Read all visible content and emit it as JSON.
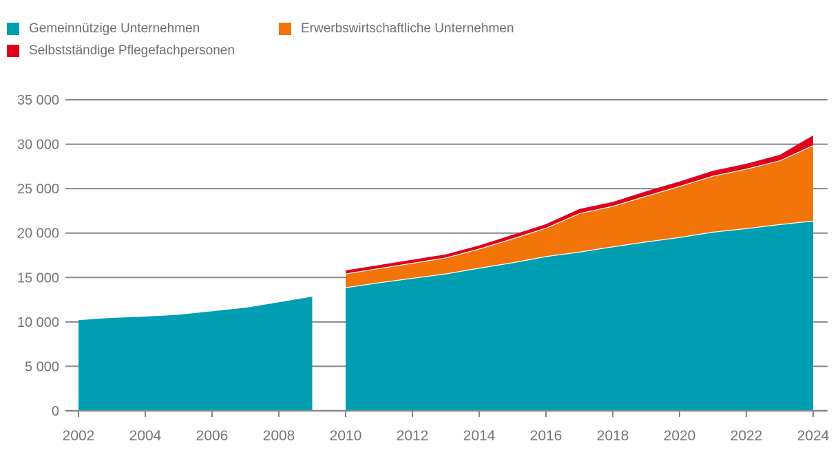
{
  "legend": {
    "items": [
      {
        "id": "gemeinnuetzige",
        "label": "Gemeinnützige Unternehmen",
        "color": "#009EB3"
      },
      {
        "id": "erwerbswirtschaftliche",
        "label": "Erwerbswirtschaftliche Unternehmen",
        "color": "#F37409"
      },
      {
        "id": "selbststaendige",
        "label": "Selbstständige Pflegefachpersonen",
        "color": "#E0001E"
      }
    ]
  },
  "chart_data": {
    "type": "area",
    "stacked": true,
    "grid": "horizontal",
    "legend_position": "top-left",
    "title": "",
    "xlabel": "",
    "ylabel": "",
    "ylim": [
      0,
      35000
    ],
    "y_ticks": [
      0,
      5000,
      10000,
      15000,
      20000,
      25000,
      30000,
      35000
    ],
    "y_tick_labels": [
      "0",
      "5 000",
      "10 000",
      "15 000",
      "20 000",
      "25 000",
      "30 000",
      "35 000"
    ],
    "x": [
      2002,
      2003,
      2004,
      2005,
      2006,
      2007,
      2008,
      2009,
      2010,
      2011,
      2012,
      2013,
      2014,
      2015,
      2016,
      2017,
      2018,
      2019,
      2020,
      2021,
      2022,
      2023,
      2024
    ],
    "x_tick_labels": [
      "2002",
      "2004",
      "2006",
      "2008",
      "2010",
      "2012",
      "2014",
      "2016",
      "2018",
      "2020",
      "2022",
      "2024"
    ],
    "segments": [
      [
        2002,
        2009
      ],
      [
        2010,
        2024
      ]
    ],
    "gap_between": [
      2009,
      2010
    ],
    "series": [
      {
        "name": "Gemeinnützige Unternehmen",
        "color": "#009EB3",
        "values": [
          10200,
          10450,
          10600,
          10800,
          11200,
          11600,
          12200,
          12850,
          13900,
          14450,
          14950,
          15450,
          16100,
          16700,
          17400,
          17900,
          18500,
          19050,
          19550,
          20150,
          20550,
          21000,
          21400
        ]
      },
      {
        "name": "Erwerbswirtschaftliche Unternehmen",
        "color": "#F37409",
        "values": [
          null,
          null,
          null,
          null,
          null,
          null,
          null,
          null,
          1550,
          1600,
          1700,
          1800,
          2150,
          2700,
          3200,
          4350,
          4550,
          5150,
          5750,
          6300,
          6700,
          7180,
          8500
        ]
      },
      {
        "name": "Selbstständige Pflegefachpersonen",
        "color": "#E0001E",
        "values": [
          null,
          null,
          null,
          null,
          null,
          null,
          null,
          null,
          350,
          350,
          350,
          350,
          350,
          400,
          400,
          450,
          450,
          500,
          500,
          550,
          550,
          620,
          1100
        ]
      }
    ]
  },
  "style": {
    "gridline_color": "#86888A",
    "axis_text_color": "#757575",
    "separator_color": "#FFFFFF"
  }
}
